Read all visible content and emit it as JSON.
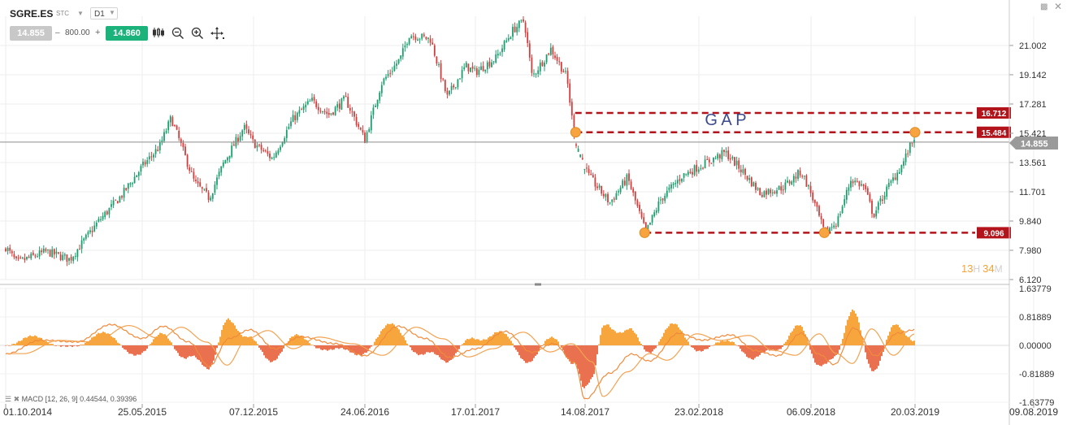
{
  "toolbar": {
    "symbol": "SGRE.ES",
    "instrument_class": "STC",
    "timeframe": "D1",
    "bid": "14.855",
    "volume": "800.00",
    "ask": "14.860",
    "tools": [
      "candles-icon",
      "zoom-out-icon",
      "zoom-in-icon",
      "crosshair-icon"
    ]
  },
  "window_controls": [
    "collapse-icon",
    "close-icon"
  ],
  "colors": {
    "up_candle": "#1a9e6e",
    "down_candle": "#d43c3c",
    "gap_line": "#b3131b",
    "marker": "#f7a440",
    "macd_positive": "#f6a63c",
    "macd_negative": "#e9714f",
    "price_badge": "#9a9a9a"
  },
  "countdown": {
    "hours": "13",
    "h_label": "H",
    "minutes": "34",
    "m_label": "M"
  },
  "chart_data": [
    {
      "type": "candlestick",
      "price_axis_labels": [
        "21.002",
        "19.142",
        "17.281",
        "15.421",
        "13.561",
        "11.701",
        "9.840",
        "7.980",
        "6.120"
      ],
      "ylim": [
        6.12,
        22.86
      ],
      "date_labels": [
        "01.10.2014",
        "25.05.2015",
        "07.12.2015",
        "24.06.2016",
        "17.01.2017",
        "14.08.2017",
        "23.02.2018",
        "06.09.2018",
        "20.03.2019",
        "09.08.2019"
      ],
      "current_price": 14.855,
      "current_price_label": "14.855",
      "annotation": "G A P",
      "levels": [
        {
          "label": "16.712",
          "value": 16.712
        },
        {
          "label": "15.484",
          "value": 15.484
        },
        {
          "label": "9.096",
          "value": 9.096
        }
      ],
      "close_path": [
        {
          "date": "2014-10-01",
          "close": 8.2
        },
        {
          "date": "2014-10-20",
          "close": 7.2
        },
        {
          "date": "2014-12-10",
          "close": 7.9
        },
        {
          "date": "2015-01-20",
          "close": 7.4
        },
        {
          "date": "2015-03-10",
          "close": 9.8
        },
        {
          "date": "2015-04-20",
          "close": 11.5
        },
        {
          "date": "2015-05-25",
          "close": 13.3
        },
        {
          "date": "2015-06-25",
          "close": 14.6
        },
        {
          "date": "2015-07-15",
          "close": 16.4
        },
        {
          "date": "2015-08-05",
          "close": 14.3
        },
        {
          "date": "2015-08-25",
          "close": 12.3
        },
        {
          "date": "2015-09-20",
          "close": 11.3
        },
        {
          "date": "2015-10-15",
          "close": 13.5
        },
        {
          "date": "2015-11-20",
          "close": 15.8
        },
        {
          "date": "2015-12-07",
          "close": 14.8
        },
        {
          "date": "2016-01-10",
          "close": 13.8
        },
        {
          "date": "2016-02-15",
          "close": 16.3
        },
        {
          "date": "2016-03-20",
          "close": 17.5
        },
        {
          "date": "2016-04-20",
          "close": 16.6
        },
        {
          "date": "2016-05-20",
          "close": 17.6
        },
        {
          "date": "2016-06-24",
          "close": 15.0
        },
        {
          "date": "2016-07-25",
          "close": 18.6
        },
        {
          "date": "2016-08-30",
          "close": 20.2
        },
        {
          "date": "2016-09-15",
          "close": 21.7
        },
        {
          "date": "2016-10-25",
          "close": 21.4
        },
        {
          "date": "2016-11-25",
          "close": 17.7
        },
        {
          "date": "2016-12-30",
          "close": 19.7
        },
        {
          "date": "2017-01-17",
          "close": 19.3
        },
        {
          "date": "2017-02-25",
          "close": 20.2
        },
        {
          "date": "2017-03-30",
          "close": 22.0
        },
        {
          "date": "2017-04-20",
          "close": 22.6
        },
        {
          "date": "2017-05-05",
          "close": 19.0
        },
        {
          "date": "2017-06-10",
          "close": 20.8
        },
        {
          "date": "2017-07-10",
          "close": 19.0
        },
        {
          "date": "2017-07-20",
          "close": 16.4
        },
        {
          "date": "2017-07-27",
          "close": 14.9
        },
        {
          "date": "2017-08-20",
          "close": 12.7
        },
        {
          "date": "2017-09-25",
          "close": 11.0
        },
        {
          "date": "2017-10-25",
          "close": 12.6
        },
        {
          "date": "2017-11-25",
          "close": 9.1
        },
        {
          "date": "2017-12-20",
          "close": 11.2
        },
        {
          "date": "2018-01-25",
          "close": 12.7
        },
        {
          "date": "2018-02-23",
          "close": 13.3
        },
        {
          "date": "2018-04-10",
          "close": 14.2
        },
        {
          "date": "2018-05-10",
          "close": 13.0
        },
        {
          "date": "2018-06-10",
          "close": 11.6
        },
        {
          "date": "2018-07-20",
          "close": 12.0
        },
        {
          "date": "2018-08-20",
          "close": 13.0
        },
        {
          "date": "2018-09-06",
          "close": 11.6
        },
        {
          "date": "2018-10-01",
          "close": 9.1
        },
        {
          "date": "2018-10-25",
          "close": 9.8
        },
        {
          "date": "2018-11-20",
          "close": 12.5
        },
        {
          "date": "2018-12-15",
          "close": 12.0
        },
        {
          "date": "2019-01-01",
          "close": 10.2
        },
        {
          "date": "2019-01-25",
          "close": 11.8
        },
        {
          "date": "2019-02-25",
          "close": 13.5
        },
        {
          "date": "2019-03-20",
          "close": 15.3
        }
      ],
      "markers": [
        {
          "date": "2017-07-27",
          "value": 15.484
        },
        {
          "date": "2017-11-23",
          "value": 9.096
        },
        {
          "date": "2018-10-01",
          "value": 9.096
        },
        {
          "date": "2019-03-20",
          "value": 15.484
        }
      ]
    },
    {
      "type": "macd",
      "legend": "MACD [12, 26, 9] 0.44544, 0.39396",
      "axis_labels": [
        "1.63779",
        "0.81889",
        "0.00000",
        "-0.81889",
        "-1.63779"
      ],
      "ylim": [
        -1.63779,
        1.63779
      ],
      "macd_path": [
        {
          "date": "2014-10-01",
          "value": -0.25
        },
        {
          "date": "2014-12-01",
          "value": 0.15
        },
        {
          "date": "2015-02-01",
          "value": 0.1
        },
        {
          "date": "2015-04-01",
          "value": 0.6
        },
        {
          "date": "2015-05-25",
          "value": 0.2
        },
        {
          "date": "2015-07-01",
          "value": 0.55
        },
        {
          "date": "2015-08-15",
          "value": 0.1
        },
        {
          "date": "2015-09-20",
          "value": -0.6
        },
        {
          "date": "2015-10-25",
          "value": 0.2
        },
        {
          "date": "2015-12-01",
          "value": 0.45
        },
        {
          "date": "2016-01-15",
          "value": -0.1
        },
        {
          "date": "2016-03-01",
          "value": 0.25
        },
        {
          "date": "2016-05-01",
          "value": 0.05
        },
        {
          "date": "2016-06-24",
          "value": -0.3
        },
        {
          "date": "2016-08-25",
          "value": 0.55
        },
        {
          "date": "2016-10-15",
          "value": 0.2
        },
        {
          "date": "2016-12-01",
          "value": -0.35
        },
        {
          "date": "2017-01-17",
          "value": -0.1
        },
        {
          "date": "2017-03-15",
          "value": 0.4
        },
        {
          "date": "2017-05-05",
          "value": -0.2
        },
        {
          "date": "2017-06-15",
          "value": 0.05
        },
        {
          "date": "2017-07-25",
          "value": -0.5
        },
        {
          "date": "2017-08-14",
          "value": -1.55
        },
        {
          "date": "2017-09-25",
          "value": -0.8
        },
        {
          "date": "2017-11-01",
          "value": -0.25
        },
        {
          "date": "2017-12-01",
          "value": -0.45
        },
        {
          "date": "2018-01-20",
          "value": 0.35
        },
        {
          "date": "2018-03-01",
          "value": 0.15
        },
        {
          "date": "2018-04-20",
          "value": 0.3
        },
        {
          "date": "2018-06-01",
          "value": -0.15
        },
        {
          "date": "2018-07-10",
          "value": -0.3
        },
        {
          "date": "2018-08-20",
          "value": 0.35
        },
        {
          "date": "2018-09-20",
          "value": -0.25
        },
        {
          "date": "2018-10-20",
          "value": -0.55
        },
        {
          "date": "2018-11-25",
          "value": 0.5
        },
        {
          "date": "2019-01-05",
          "value": -0.3
        },
        {
          "date": "2019-02-15",
          "value": 0.35
        },
        {
          "date": "2019-03-20",
          "value": 0.45
        }
      ],
      "signal_lag_points": 2
    }
  ]
}
